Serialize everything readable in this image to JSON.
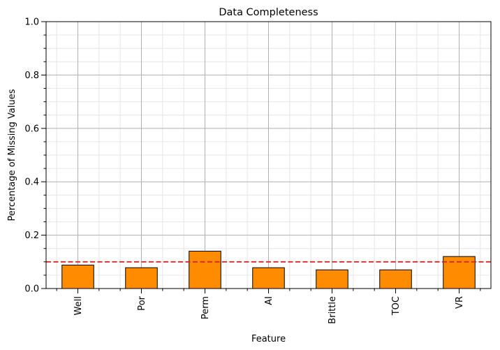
{
  "chart_data": {
    "type": "bar",
    "title": "Data Completeness",
    "xlabel": "Feature",
    "ylabel": "Percentage of Missing Values",
    "categories": [
      "Well",
      "Por",
      "Perm",
      "AI",
      "Brittle",
      "TOC",
      "VR"
    ],
    "values": [
      0.088,
      0.078,
      0.14,
      0.078,
      0.07,
      0.07,
      0.12
    ],
    "ylim": [
      0,
      1.0
    ],
    "yticks": [
      "0.0",
      "0.2",
      "0.4",
      "0.6",
      "0.8",
      "1.0"
    ],
    "threshold": 0.1,
    "grid": true,
    "minor_grid": true,
    "colors": {
      "bar_fill": "#ff8c00",
      "bar_edge": "#000000",
      "threshold_line": "#d62728",
      "major_grid": "#b0b0b0",
      "minor_grid": "#e6e6e6"
    }
  }
}
